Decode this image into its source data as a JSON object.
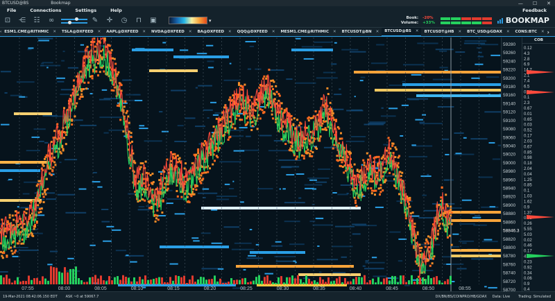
{
  "window": {
    "title": "BTCUSD@BS",
    "app": "Bookmap",
    "minimize": "—",
    "maximize": "☐",
    "close": "✕"
  },
  "menu": {
    "file": "File",
    "connections": "Connections",
    "settings": "Settings",
    "help": "Help",
    "feedback": "Feedback"
  },
  "book": {
    "book_label": "Book:",
    "volume_label": "Volume:",
    "book_value": "-20%",
    "volume_value": "+33%"
  },
  "brand": {
    "name": "BOOKMAP",
    "accent": "#2d9be0"
  },
  "tabs": [
    {
      "label": "ESM1.CME@RITHMIC"
    },
    {
      "label": "TSLA@DXFEED"
    },
    {
      "label": "AAPL@DXFEED"
    },
    {
      "label": "NVDA@DXFEED"
    },
    {
      "label": "BA@DXFEED"
    },
    {
      "label": "QQQ@DXFEED"
    },
    {
      "label": "MESM1.CME@RITHMIC"
    },
    {
      "label": "BTCUSDT@BN"
    },
    {
      "label": "BTCUSD@BS",
      "active": true
    },
    {
      "label": "BTCUSDT@HB"
    },
    {
      "label": "BTC_USD@GDAX"
    },
    {
      "label": "CONS:BTC"
    }
  ],
  "tab_controls": {
    "prev": "‹",
    "next": "›",
    "add": "+",
    "more": "⌄"
  },
  "toolbar_icons": [
    "screenshot-icon",
    "share-icon",
    "settings-sliders-icon",
    "link-icon",
    "pencil-icon",
    "crosshair-icon",
    "clock-icon",
    "lock-open-icon",
    "lock-icon"
  ],
  "price_axis": {
    "labels": [
      "59280",
      "59260",
      "59240",
      "59220",
      "59200",
      "59180",
      "59160",
      "59140",
      "59120",
      "59100",
      "59080",
      "59060",
      "59040",
      "59020",
      "59000",
      "58980",
      "58960",
      "58940",
      "58920",
      "58900",
      "58880",
      "58860",
      "58846.3",
      "58820",
      "58800",
      "58780",
      "58760",
      "58740",
      "58720",
      "58700"
    ],
    "current_price": "58846.3"
  },
  "cob": {
    "header": "COB",
    "values": [
      "0.12",
      "4.3",
      "2.8",
      "6.9",
      "14.7",
      "2.1",
      "7.4",
      "6.5",
      "0.14",
      "0.1",
      "2.3",
      "0.67",
      "0.01",
      "0.65",
      "0.03",
      "0.52",
      "0.17",
      "2.03",
      "0.67",
      "0.85",
      "0.98",
      "0.18",
      "2.04",
      "0.04",
      "1.25",
      "0.85",
      "0.1",
      "1.03",
      "1.62",
      "0.9",
      "1.37",
      "0.03",
      "0.26",
      "5.55",
      "5.03",
      "0.02",
      "0.46",
      "0.17",
      "4.2",
      "0.23",
      "0.92",
      "0.34",
      "0.06",
      "0.9",
      "0.4"
    ]
  },
  "time_axis": {
    "labels": [
      "07:55",
      "08:00",
      "08:05",
      "08:10",
      "08:15",
      "08:20",
      "08:25",
      "08:30",
      "08:35",
      "08:40",
      "08:45",
      "08:50",
      "08:55"
    ]
  },
  "status": {
    "datetime": "19-Mar-2021 08:42:06.150 EDT",
    "ask": "ASK ~0 at 59067.7",
    "feeds": "DX/BN/BS/COINPRO/HB/GDAX",
    "data": "Data: Live",
    "trading": "Trading: Simulated"
  },
  "colors": {
    "ask_line": "#ff4a3c",
    "bid_line": "#25d15e",
    "accent": "#2d9be0"
  }
}
